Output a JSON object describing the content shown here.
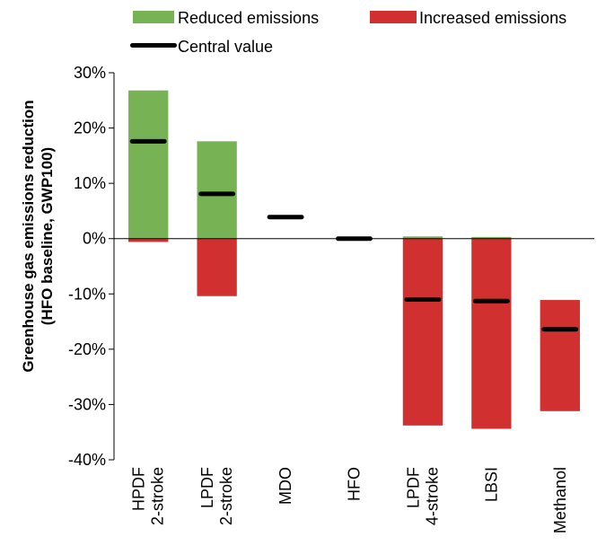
{
  "chart_data": {
    "type": "bar",
    "title": "",
    "ylabel_line1": "Greenhouse gas emissions reduction",
    "ylabel_line2": "(HFO baseline, GWP100)",
    "ylim": [
      -40,
      30
    ],
    "yticks": [
      {
        "value": 30,
        "label": "30%"
      },
      {
        "value": 20,
        "label": "20%"
      },
      {
        "value": 10,
        "label": "10%"
      },
      {
        "value": 0,
        "label": "0%"
      },
      {
        "value": -10,
        "label": "-10%"
      },
      {
        "value": -20,
        "label": "-20%"
      },
      {
        "value": -30,
        "label": "-30%"
      },
      {
        "value": -40,
        "label": "-40%"
      }
    ],
    "categories": [
      {
        "lines": [
          "HPDF",
          "2-stroke"
        ]
      },
      {
        "lines": [
          "LPDF",
          "2-stroke"
        ]
      },
      {
        "lines": [
          "MDO"
        ]
      },
      {
        "lines": [
          "HFO"
        ]
      },
      {
        "lines": [
          "LPDF",
          "4-stroke"
        ]
      },
      {
        "lines": [
          "LBSI"
        ]
      },
      {
        "lines": [
          "Methanol"
        ]
      }
    ],
    "series": [
      {
        "name": "Reduced emissions",
        "color": "#77b255",
        "ranges": [
          [
            0,
            26.8
          ],
          [
            0,
            17.6
          ],
          null,
          null,
          [
            0,
            0.4
          ],
          [
            0,
            0.3
          ],
          null
        ]
      },
      {
        "name": "Increased emissions",
        "color": "#d03030",
        "ranges": [
          [
            -0.6,
            0
          ],
          [
            -10.4,
            0
          ],
          null,
          null,
          [
            -33.8,
            0
          ],
          [
            -34.4,
            0
          ],
          [
            -31.2,
            -11.1
          ]
        ]
      },
      {
        "name": "Central value",
        "color": "#000000",
        "values": [
          17.6,
          8.1,
          3.9,
          0,
          -11.0,
          -11.3,
          -16.4
        ]
      }
    ],
    "grid": false,
    "legend_position": "top"
  }
}
